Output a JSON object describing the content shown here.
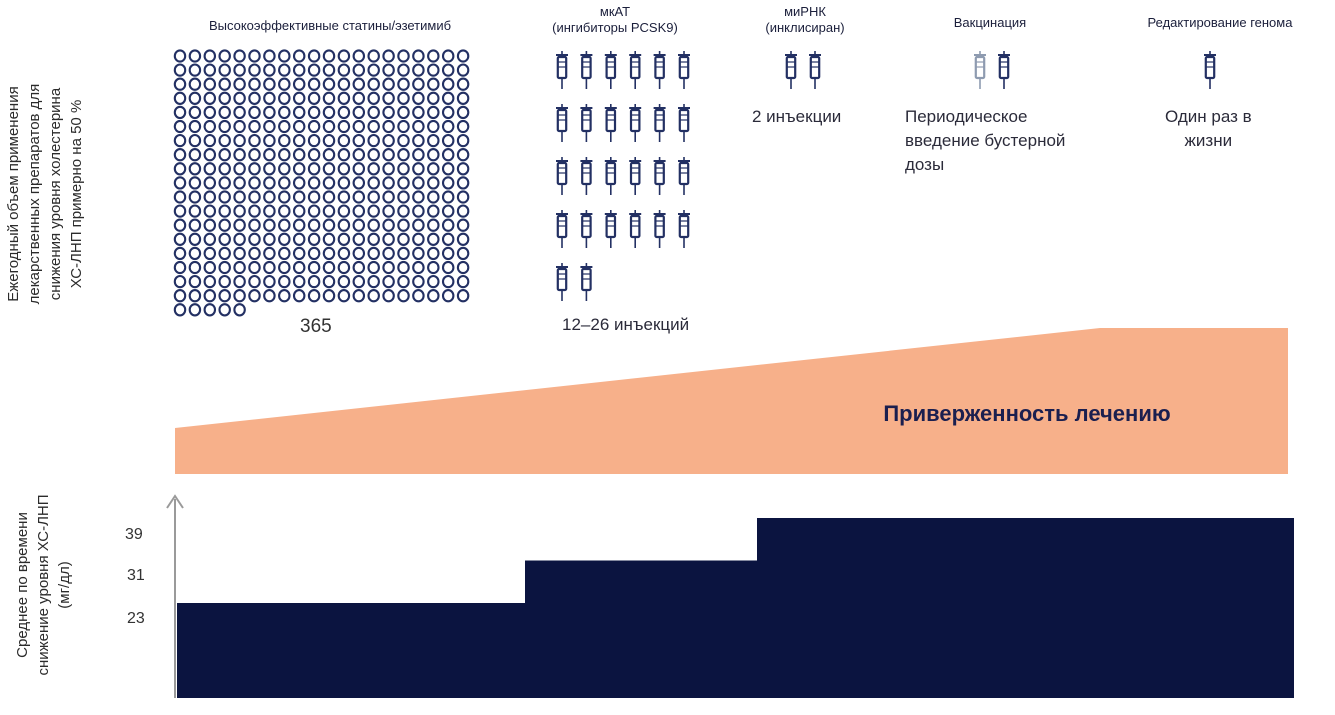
{
  "axis_upper_label": "Ежегодный объем применения\nлекарственных препаратов для\nснижения уровня холестерина\nХС-ЛНП примерно на 50 %",
  "axis_lower_label": "Среднее по времени\nснижение уровня ХС-ЛНП\n(мг/дл)",
  "columns": [
    {
      "title": "Высокоэффективные статины/эзетимиб",
      "note": "365"
    },
    {
      "title": "мкАТ\n(ингибиторы PCSK9)",
      "note": "12–26 инъекций"
    },
    {
      "title": "миРНК\n(инклисиран)",
      "note": "2 инъекции"
    },
    {
      "title": "Вакцинация",
      "note": "Периодическое\nвведение бустерной\nдозы"
    },
    {
      "title": "Редактирование генома",
      "note": "Один раз в\nжизни"
    }
  ],
  "adherence_label": "Приверженность лечению",
  "y_ticks": [
    "39",
    "31",
    "23"
  ],
  "chart_data": {
    "type": "area",
    "step_values": [
      23,
      31,
      39
    ],
    "y_ticks": [
      23,
      31,
      39
    ]
  },
  "colors": {
    "navy": "#0b1440",
    "syringe": "#233063",
    "syringe_light": "#8e9bb0",
    "adherence": "#f7b08a",
    "axis": "#9a9a9a"
  },
  "icons": {
    "pill": "pill-icon",
    "syringe": "syringe-icon"
  }
}
